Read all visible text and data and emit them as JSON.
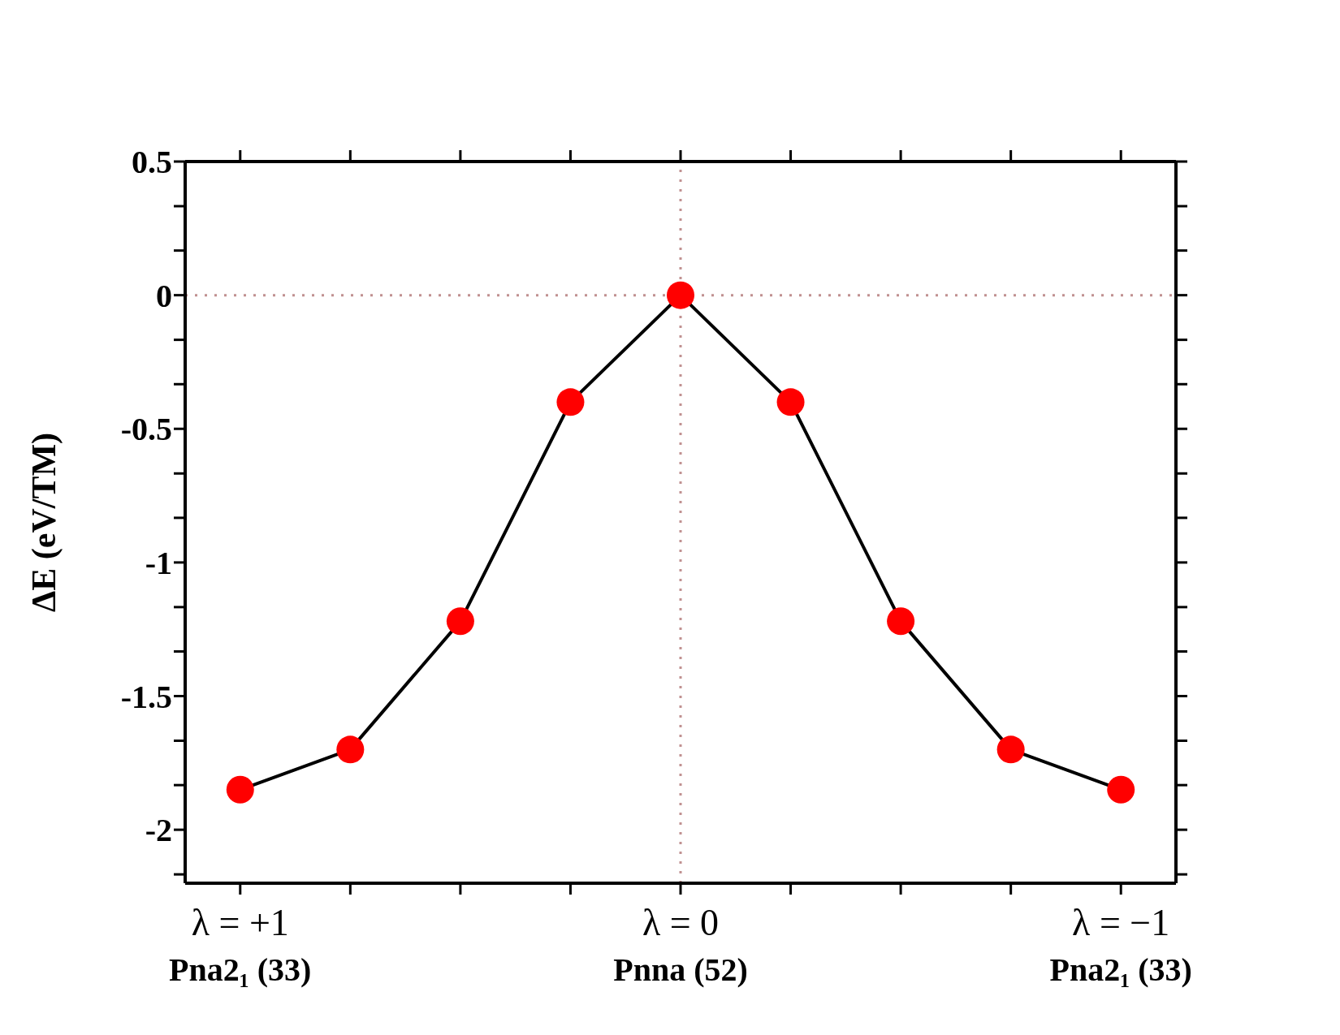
{
  "chart_data": {
    "type": "line",
    "ylabel": "ΔE (eV/TM)",
    "categories": [
      "λ = +1\nPna2₁ (33)",
      null,
      null,
      null,
      "λ = 0\nPnna (52)",
      null,
      null,
      null,
      "λ = −1\nPna2₁ (33)"
    ],
    "series": [
      {
        "color": "#000000",
        "colors": [
          "#ff0000",
          "#ff0000",
          "#ff0000",
          "#ff0000",
          "#ff0000",
          "#ff0000",
          "#ff0000",
          "#ff0000",
          "#ff0000"
        ],
        "values": [
          -1.85,
          -1.7,
          -1.22,
          -0.4,
          0,
          -0.4,
          -1.22,
          -1.7,
          -1.85
        ]
      }
    ],
    "ylim": [
      -2.2,
      0.5
    ],
    "yticks": [
      0.5,
      {
        "value": 0.333,
        "label": null
      },
      {
        "value": 0.167,
        "label": null
      },
      0,
      {
        "value": -0.167,
        "label": null
      },
      {
        "value": -0.333,
        "label": null
      },
      -0.5,
      {
        "value": -0.667,
        "label": null
      },
      {
        "value": -0.833,
        "label": null
      },
      -1,
      {
        "value": -1.167,
        "label": null
      },
      {
        "value": -1.333,
        "label": null
      },
      -1.5,
      {
        "value": -1.667,
        "label": null
      },
      {
        "value": -1.833,
        "label": null
      },
      -2,
      {
        "value": -2.167,
        "label": null
      }
    ],
    "ref_lines": [
      {
        "axis": "x",
        "value": "λ = 0\nPnna (52)",
        "color": "#c09090",
        "line_style": "dotted"
      },
      {
        "axis": "y",
        "value": 0,
        "color": "#c09090",
        "line_style": "dotted"
      }
    ],
    "marker": "circle",
    "line_style": "solid",
    "grid": false,
    "legend": false
  }
}
